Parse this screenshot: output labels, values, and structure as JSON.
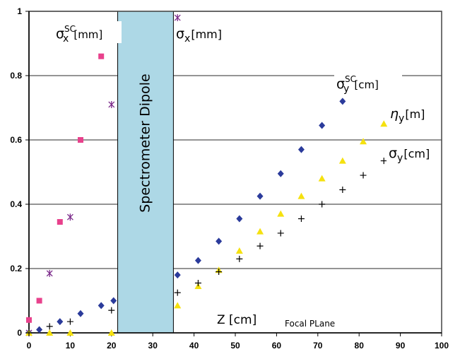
{
  "chart_data": {
    "type": "scatter",
    "xlim": [
      0,
      100
    ],
    "ylim": [
      0,
      1
    ],
    "x_ticks": [
      "0",
      "10",
      "20",
      "30",
      "40",
      "50",
      "60",
      "70",
      "80",
      "90",
      "100"
    ],
    "y_ticks": [
      "0",
      "0.2",
      "0.4",
      "0.6",
      "0.8",
      "1"
    ],
    "grid": "horizontal",
    "xlabel": "Z [cm]",
    "annotation": "Focal PLane",
    "dipole": {
      "label": "Spectrometer Dipole",
      "x_range": [
        21.5,
        35
      ],
      "color": "#add8e6"
    },
    "series": [
      {
        "key": "sx_sc",
        "base": "σ",
        "sub": "x",
        "sup": "SC",
        "unit": "[mm]",
        "marker": "square",
        "color": "#e8418c",
        "points": [
          [
            0,
            0.04
          ],
          [
            2.5,
            0.1
          ],
          [
            7.5,
            0.345
          ],
          [
            12.5,
            0.6
          ],
          [
            17.5,
            0.86
          ]
        ]
      },
      {
        "key": "sx",
        "base": "σ",
        "sub": "x",
        "sup": "",
        "unit": "[mm]",
        "marker": "star",
        "color": "#7b2a8a",
        "points": [
          [
            0,
            0.0
          ],
          [
            5,
            0.185
          ],
          [
            10,
            0.36
          ],
          [
            20,
            0.71
          ],
          [
            36,
            0.98
          ]
        ]
      },
      {
        "key": "sy_sc",
        "base": "σ",
        "sub": "y",
        "sup": "SC",
        "unit": "[cm]",
        "marker": "diamond",
        "color": "#2b3b9b",
        "points": [
          [
            0,
            0.0
          ],
          [
            2.5,
            0.01
          ],
          [
            7.5,
            0.035
          ],
          [
            12.5,
            0.06
          ],
          [
            17.5,
            0.085
          ],
          [
            20.5,
            0.1
          ],
          [
            36,
            0.18
          ],
          [
            41,
            0.225
          ],
          [
            46,
            0.285
          ],
          [
            51,
            0.355
          ],
          [
            56,
            0.425
          ],
          [
            61,
            0.495
          ],
          [
            66,
            0.57
          ],
          [
            71,
            0.645
          ],
          [
            76,
            0.72
          ]
        ]
      },
      {
        "key": "eta_y",
        "base": "η",
        "sub": "y",
        "sup": "",
        "unit": "[m]",
        "marker": "triangle",
        "color": "#f5e10f",
        "points": [
          [
            0,
            0.0
          ],
          [
            5,
            0.0
          ],
          [
            10,
            0.0
          ],
          [
            20,
            0.0
          ],
          [
            36,
            0.085
          ],
          [
            41,
            0.145
          ],
          [
            46,
            0.195
          ],
          [
            51,
            0.255
          ],
          [
            56,
            0.315
          ],
          [
            61,
            0.37
          ],
          [
            66,
            0.425
          ],
          [
            71,
            0.48
          ],
          [
            76,
            0.535
          ],
          [
            81,
            0.595
          ],
          [
            86,
            0.65
          ]
        ]
      },
      {
        "key": "sy",
        "base": "σ",
        "sub": "y",
        "sup": "",
        "unit": "[cm]",
        "marker": "plus",
        "color": "#000000",
        "points": [
          [
            0,
            0.0
          ],
          [
            5,
            0.02
          ],
          [
            10,
            0.035
          ],
          [
            20,
            0.07
          ],
          [
            36,
            0.125
          ],
          [
            41,
            0.155
          ],
          [
            46,
            0.19
          ],
          [
            51,
            0.23
          ],
          [
            56,
            0.27
          ],
          [
            61,
            0.31
          ],
          [
            66,
            0.355
          ],
          [
            71,
            0.4
          ],
          [
            76,
            0.445
          ],
          [
            81,
            0.49
          ],
          [
            86,
            0.535
          ]
        ]
      }
    ]
  }
}
